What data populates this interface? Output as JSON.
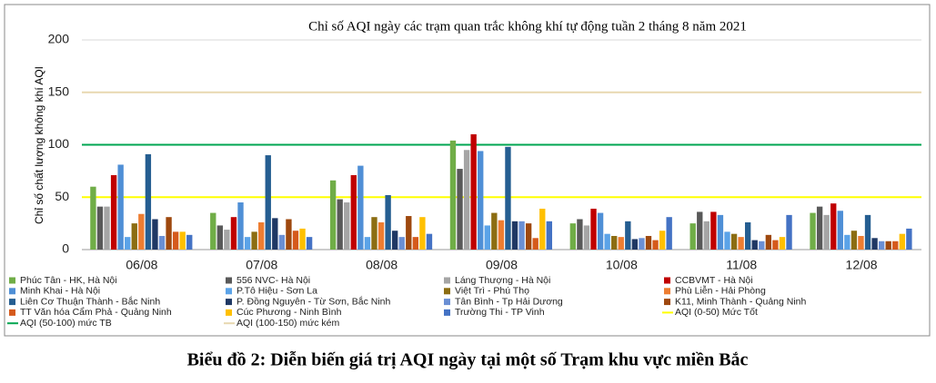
{
  "chart_data": {
    "type": "bar",
    "title": "Chỉ số AQI ngày các trạm quan trắc không khí tự động tuần 2 tháng 8 năm 2021",
    "y_label": "Chỉ số chất lượng không khí AQI",
    "categories": [
      "06/08",
      "07/08",
      "08/08",
      "09/08",
      "10/08",
      "11/08",
      "12/08"
    ],
    "ylim": [
      0,
      200
    ],
    "yticks": [
      0,
      50,
      100,
      150,
      200
    ],
    "grid": true,
    "series": [
      {
        "name": "Phúc Tân - HK, Hà Nội",
        "color": "#70ad47",
        "values": [
          60,
          35,
          66,
          104,
          25,
          25,
          35
        ]
      },
      {
        "name": "556 NVC- Hà Nội",
        "color": "#595959",
        "values": [
          41,
          23,
          48,
          77,
          29,
          36,
          41
        ]
      },
      {
        "name": "Láng Thượng - Hà Nội",
        "color": "#a5a5a5",
        "values": [
          41,
          19,
          45,
          95,
          23,
          27,
          33
        ]
      },
      {
        "name": "CCBVMT - Hà Nội",
        "color": "#c00000",
        "values": [
          71,
          31,
          71,
          110,
          39,
          36,
          44
        ]
      },
      {
        "name": "Minh Khai - Hà Nội",
        "color": "#4f8fd6",
        "values": [
          81,
          45,
          80,
          94,
          35,
          33,
          37
        ]
      },
      {
        "name": "P.Tô Hiệu - Sơn La",
        "color": "#5ba3e8",
        "values": [
          12,
          12,
          12,
          23,
          15,
          17,
          14
        ]
      },
      {
        "name": "Việt Trì  - Phú Thọ",
        "color": "#8c6d12",
        "values": [
          25,
          17,
          31,
          35,
          13,
          15,
          18
        ]
      },
      {
        "name": "Phù Liễn - Hải Phòng",
        "color": "#ed7d31",
        "values": [
          34,
          26,
          26,
          28,
          12,
          12,
          13
        ]
      },
      {
        "name": "Liên Cơ Thuận Thành - Bắc Ninh",
        "color": "#255e91",
        "values": [
          91,
          90,
          52,
          98,
          27,
          26,
          33
        ]
      },
      {
        "name": "P. Đồng Nguyên - Từ Sơn, Bắc Ninh",
        "color": "#1f3864",
        "values": [
          29,
          30,
          18,
          27,
          10,
          9,
          11
        ]
      },
      {
        "name": "Tân Bình - Tp Hải Dương",
        "color": "#6a8fd4",
        "values": [
          13,
          14,
          12,
          27,
          11,
          8,
          8
        ]
      },
      {
        "name": "K11, Minh Thành - Quảng Ninh",
        "color": "#9e480e",
        "values": [
          31,
          29,
          32,
          25,
          13,
          14,
          8
        ]
      },
      {
        "name": "TT Văn hóa Cẩm Phả - Quảng Ninh",
        "color": "#d55a1c",
        "values": [
          17,
          18,
          12,
          11,
          9,
          9,
          8
        ]
      },
      {
        "name": "Cúc Phương - Ninh Bình",
        "color": "#ffc000",
        "values": [
          17,
          20,
          31,
          39,
          18,
          12,
          15
        ]
      },
      {
        "name": "Trường Thi - TP Vinh",
        "color": "#4472c4",
        "values": [
          14,
          12,
          15,
          27,
          31,
          33,
          20
        ]
      }
    ],
    "thresholds": [
      {
        "name": "AQI (0-50) Mức Tốt",
        "color": "#ffff00",
        "value": 50
      },
      {
        "name": "AQI (50-100) mức TB",
        "color": "#00a651",
        "value": 100
      },
      {
        "name": "AQI (100-150) mức kém",
        "color": "#e8d8b0",
        "value": 150
      }
    ]
  },
  "caption": "Biểu đồ 2: Diễn biến giá trị AQI ngày tại một số Trạm khu vực miền Bắc"
}
